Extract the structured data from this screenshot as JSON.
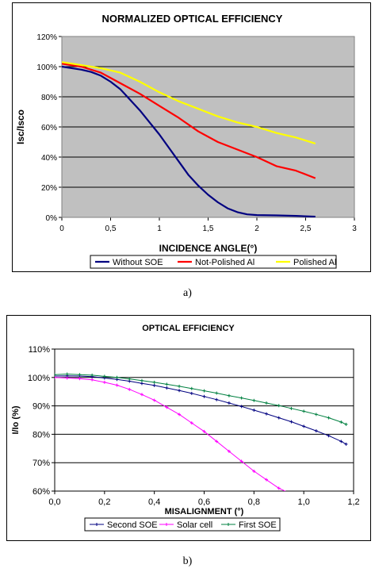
{
  "chart_data": [
    {
      "type": "line",
      "title": "NORMALIZED OPTICAL EFFICIENCY",
      "xlabel": "INCIDENCE ANGLE(°)",
      "ylabel": "Isc/Isco",
      "xlim": [
        0,
        3
      ],
      "ylim": [
        0,
        120
      ],
      "x_ticks": [
        "0",
        "0,5",
        "1",
        "1,5",
        "2",
        "2,5",
        "3"
      ],
      "x_tick_values": [
        0,
        0.5,
        1,
        1.5,
        2,
        2.5,
        3
      ],
      "y_ticks": [
        "0%",
        "20%",
        "40%",
        "60%",
        "80%",
        "100%",
        "120%"
      ],
      "y_tick_values": [
        0,
        20,
        40,
        60,
        80,
        100,
        120
      ],
      "grid": "horizontal",
      "legend_position": "bottom",
      "series": [
        {
          "name": "Without SOE",
          "color": "#000080",
          "markers": false,
          "points": [
            [
              0,
              100
            ],
            [
              0.1,
              99
            ],
            [
              0.2,
              98
            ],
            [
              0.3,
              96.5
            ],
            [
              0.4,
              94
            ],
            [
              0.5,
              90
            ],
            [
              0.6,
              85
            ],
            [
              0.7,
              78
            ],
            [
              0.8,
              71
            ],
            [
              0.9,
              63
            ],
            [
              1.0,
              55
            ],
            [
              1.1,
              46
            ],
            [
              1.2,
              37
            ],
            [
              1.3,
              28
            ],
            [
              1.4,
              21
            ],
            [
              1.5,
              15
            ],
            [
              1.6,
              10
            ],
            [
              1.7,
              6
            ],
            [
              1.8,
              3.5
            ],
            [
              1.9,
              2
            ],
            [
              2.0,
              1.5
            ],
            [
              2.2,
              1.3
            ],
            [
              2.4,
              1
            ],
            [
              2.6,
              0.5
            ]
          ]
        },
        {
          "name": "Not-Polished Al",
          "color": "#ff0000",
          "markers": false,
          "points": [
            [
              0,
              102
            ],
            [
              0.2,
              100
            ],
            [
              0.4,
              96
            ],
            [
              0.6,
              89
            ],
            [
              0.8,
              82
            ],
            [
              1.0,
              74
            ],
            [
              1.2,
              66
            ],
            [
              1.4,
              57
            ],
            [
              1.6,
              50
            ],
            [
              1.8,
              45
            ],
            [
              2.0,
              40
            ],
            [
              2.2,
              34
            ],
            [
              2.4,
              31
            ],
            [
              2.6,
              26
            ]
          ]
        },
        {
          "name": "Polished Al",
          "color": "#ffff00",
          "markers": false,
          "points": [
            [
              0,
              103
            ],
            [
              0.2,
              101
            ],
            [
              0.4,
              99
            ],
            [
              0.6,
              96
            ],
            [
              0.8,
              90
            ],
            [
              1.0,
              83
            ],
            [
              1.2,
              77
            ],
            [
              1.4,
              72
            ],
            [
              1.6,
              67
            ],
            [
              1.8,
              63
            ],
            [
              2.0,
              60
            ],
            [
              2.2,
              56
            ],
            [
              2.4,
              53
            ],
            [
              2.6,
              49
            ]
          ]
        }
      ]
    },
    {
      "type": "line",
      "title": "OPTICAL EFFICIENCY",
      "xlabel": "MISALIGNMENT (°)",
      "ylabel": "I/Io (%)",
      "xlim": [
        0,
        1.2
      ],
      "ylim": [
        60,
        110
      ],
      "x_ticks": [
        "0,0",
        "0,2",
        "0,4",
        "0,6",
        "0,8",
        "1,0",
        "1,2"
      ],
      "x_tick_values": [
        0,
        0.2,
        0.4,
        0.6,
        0.8,
        1.0,
        1.2
      ],
      "y_ticks": [
        "60%",
        "70%",
        "80%",
        "90%",
        "100%",
        "110%"
      ],
      "y_tick_values": [
        60,
        70,
        80,
        90,
        100,
        110
      ],
      "grid": "horizontal",
      "legend_position": "bottom",
      "series": [
        {
          "name": "Second SOE",
          "color": "#000080",
          "markers": true,
          "points": [
            [
              0,
              100.5
            ],
            [
              0.05,
              100.6
            ],
            [
              0.1,
              100.5
            ],
            [
              0.15,
              100.3
            ],
            [
              0.2,
              99.8
            ],
            [
              0.25,
              99.3
            ],
            [
              0.3,
              98.7
            ],
            [
              0.35,
              97.9
            ],
            [
              0.4,
              97.2
            ],
            [
              0.45,
              96.3
            ],
            [
              0.5,
              95.4
            ],
            [
              0.55,
              94.4
            ],
            [
              0.6,
              93.3
            ],
            [
              0.65,
              92.2
            ],
            [
              0.7,
              91
            ],
            [
              0.75,
              89.8
            ],
            [
              0.8,
              88.5
            ],
            [
              0.85,
              87.2
            ],
            [
              0.9,
              85.8
            ],
            [
              0.95,
              84.4
            ],
            [
              1.0,
              82.8
            ],
            [
              1.05,
              81.2
            ],
            [
              1.1,
              79.5
            ],
            [
              1.15,
              77.5
            ],
            [
              1.17,
              76.5
            ]
          ]
        },
        {
          "name": "Solar cell",
          "color": "#ff00ff",
          "markers": true,
          "points": [
            [
              0,
              100
            ],
            [
              0.05,
              99.8
            ],
            [
              0.1,
              99.6
            ],
            [
              0.15,
              99.2
            ],
            [
              0.2,
              98.3
            ],
            [
              0.25,
              97.3
            ],
            [
              0.3,
              95.8
            ],
            [
              0.35,
              94
            ],
            [
              0.4,
              92
            ],
            [
              0.45,
              89.5
            ],
            [
              0.5,
              87
            ],
            [
              0.55,
              84
            ],
            [
              0.6,
              81
            ],
            [
              0.65,
              77.5
            ],
            [
              0.7,
              74
            ],
            [
              0.75,
              70.5
            ],
            [
              0.8,
              67
            ],
            [
              0.85,
              64
            ],
            [
              0.9,
              61
            ],
            [
              0.95,
              59
            ]
          ]
        },
        {
          "name": "First SOE",
          "color": "#008040",
          "markers": true,
          "points": [
            [
              0,
              101
            ],
            [
              0.05,
              101.2
            ],
            [
              0.1,
              101
            ],
            [
              0.15,
              100.8
            ],
            [
              0.2,
              100.4
            ],
            [
              0.25,
              100
            ],
            [
              0.3,
              99.5
            ],
            [
              0.35,
              98.9
            ],
            [
              0.4,
              98.3
            ],
            [
              0.45,
              97.6
            ],
            [
              0.5,
              96.9
            ],
            [
              0.55,
              96.1
            ],
            [
              0.6,
              95.3
            ],
            [
              0.65,
              94.5
            ],
            [
              0.7,
              93.6
            ],
            [
              0.75,
              92.8
            ],
            [
              0.8,
              91.9
            ],
            [
              0.85,
              91
            ],
            [
              0.9,
              90.1
            ],
            [
              0.95,
              89.1
            ],
            [
              1.0,
              88.1
            ],
            [
              1.05,
              87
            ],
            [
              1.1,
              85.8
            ],
            [
              1.15,
              84.3
            ],
            [
              1.17,
              83.5
            ]
          ]
        }
      ]
    }
  ],
  "captions": {
    "a": "a)",
    "b": "b)"
  }
}
